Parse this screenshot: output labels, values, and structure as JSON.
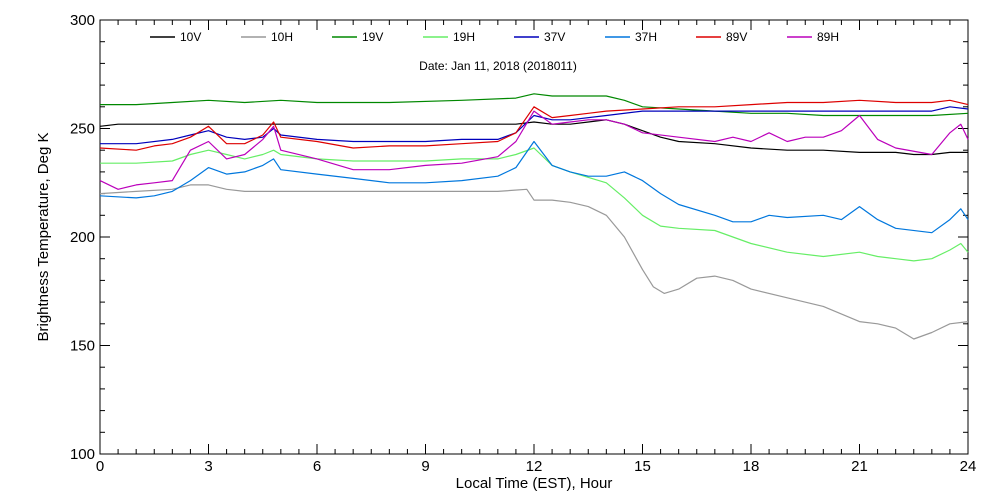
{
  "chart_data": {
    "type": "line",
    "title": "Date: Jan 11, 2018 (2018011)",
    "xlabel": "Local Time (EST), Hour",
    "ylabel": "Brightness Temperature, Deg K",
    "xlim": [
      0,
      24
    ],
    "ylim": [
      100,
      300
    ],
    "x_ticks": [
      0,
      3,
      6,
      9,
      12,
      15,
      18,
      21,
      24
    ],
    "y_ticks": [
      100,
      150,
      200,
      250,
      300
    ],
    "x_minor_step": 0.5,
    "y_minor_step": 10,
    "grid": false,
    "legend_position": "top",
    "series": [
      {
        "name": "10V",
        "color": "#000000",
        "points": [
          [
            0,
            251
          ],
          [
            0.5,
            252
          ],
          [
            1,
            252
          ],
          [
            2,
            252
          ],
          [
            3,
            252
          ],
          [
            4,
            252
          ],
          [
            5,
            252
          ],
          [
            6,
            252
          ],
          [
            8,
            252
          ],
          [
            10,
            252
          ],
          [
            11.5,
            252
          ],
          [
            12,
            253
          ],
          [
            12.5,
            252
          ],
          [
            13,
            252
          ],
          [
            13.5,
            253
          ],
          [
            14,
            254
          ],
          [
            14.5,
            252
          ],
          [
            15,
            249
          ],
          [
            15.5,
            246
          ],
          [
            16,
            244
          ],
          [
            17,
            243
          ],
          [
            18,
            241
          ],
          [
            19,
            240
          ],
          [
            20,
            240
          ],
          [
            21,
            239
          ],
          [
            22,
            239
          ],
          [
            22.5,
            238
          ],
          [
            23,
            238
          ],
          [
            23.5,
            239
          ],
          [
            24,
            239
          ]
        ]
      },
      {
        "name": "10H",
        "color": "#999999",
        "points": [
          [
            0,
            220
          ],
          [
            1,
            221
          ],
          [
            2,
            222
          ],
          [
            2.5,
            224
          ],
          [
            3,
            224
          ],
          [
            3.5,
            222
          ],
          [
            4,
            221
          ],
          [
            5,
            221
          ],
          [
            6,
            221
          ],
          [
            8,
            221
          ],
          [
            10,
            221
          ],
          [
            11,
            221
          ],
          [
            11.8,
            222
          ],
          [
            12,
            217
          ],
          [
            12.5,
            217
          ],
          [
            13,
            216
          ],
          [
            13.5,
            214
          ],
          [
            14,
            210
          ],
          [
            14.5,
            200
          ],
          [
            15,
            185
          ],
          [
            15.3,
            177
          ],
          [
            15.6,
            174
          ],
          [
            16,
            176
          ],
          [
            16.5,
            181
          ],
          [
            17,
            182
          ],
          [
            17.5,
            180
          ],
          [
            18,
            176
          ],
          [
            19,
            172
          ],
          [
            20,
            168
          ],
          [
            21,
            161
          ],
          [
            21.5,
            160
          ],
          [
            22,
            158
          ],
          [
            22.5,
            153
          ],
          [
            23,
            156
          ],
          [
            23.5,
            160
          ],
          [
            24,
            161
          ]
        ]
      },
      {
        "name": "19V",
        "color": "#008800",
        "points": [
          [
            0,
            261
          ],
          [
            1,
            261
          ],
          [
            2,
            262
          ],
          [
            3,
            263
          ],
          [
            4,
            262
          ],
          [
            5,
            263
          ],
          [
            6,
            262
          ],
          [
            8,
            262
          ],
          [
            10,
            263
          ],
          [
            11.5,
            264
          ],
          [
            12,
            266
          ],
          [
            12.5,
            265
          ],
          [
            13,
            265
          ],
          [
            14,
            265
          ],
          [
            14.5,
            263
          ],
          [
            15,
            260
          ],
          [
            16,
            259
          ],
          [
            17,
            258
          ],
          [
            18,
            257
          ],
          [
            19,
            257
          ],
          [
            20,
            256
          ],
          [
            21,
            256
          ],
          [
            22,
            256
          ],
          [
            23,
            256
          ],
          [
            24,
            257
          ]
        ]
      },
      {
        "name": "19H",
        "color": "#66ee66",
        "points": [
          [
            0,
            234
          ],
          [
            1,
            234
          ],
          [
            2,
            235
          ],
          [
            2.5,
            238
          ],
          [
            3,
            240
          ],
          [
            3.5,
            238
          ],
          [
            4,
            236
          ],
          [
            4.5,
            238
          ],
          [
            4.8,
            240
          ],
          [
            5,
            238
          ],
          [
            6,
            236
          ],
          [
            7,
            235
          ],
          [
            8,
            235
          ],
          [
            9,
            235
          ],
          [
            10,
            236
          ],
          [
            11,
            236
          ],
          [
            11.5,
            238
          ],
          [
            12,
            241
          ],
          [
            12.5,
            233
          ],
          [
            13,
            230
          ],
          [
            14,
            225
          ],
          [
            14.5,
            218
          ],
          [
            15,
            210
          ],
          [
            15.5,
            205
          ],
          [
            16,
            204
          ],
          [
            17,
            203
          ],
          [
            17.5,
            200
          ],
          [
            18,
            197
          ],
          [
            19,
            193
          ],
          [
            20,
            191
          ],
          [
            21,
            193
          ],
          [
            21.5,
            191
          ],
          [
            22,
            190
          ],
          [
            22.5,
            189
          ],
          [
            23,
            190
          ],
          [
            23.5,
            194
          ],
          [
            23.8,
            197
          ],
          [
            24,
            193
          ]
        ]
      },
      {
        "name": "37V",
        "color": "#0000bb",
        "points": [
          [
            0,
            243
          ],
          [
            1,
            243
          ],
          [
            2,
            245
          ],
          [
            2.5,
            247
          ],
          [
            3,
            249
          ],
          [
            3.5,
            246
          ],
          [
            4,
            245
          ],
          [
            4.5,
            246
          ],
          [
            4.8,
            250
          ],
          [
            5,
            247
          ],
          [
            6,
            245
          ],
          [
            7,
            244
          ],
          [
            8,
            244
          ],
          [
            9,
            244
          ],
          [
            10,
            245
          ],
          [
            11,
            245
          ],
          [
            11.5,
            248
          ],
          [
            12,
            256
          ],
          [
            12.5,
            254
          ],
          [
            13,
            254
          ],
          [
            14,
            256
          ],
          [
            15,
            258
          ],
          [
            16,
            258
          ],
          [
            17,
            258
          ],
          [
            18,
            258
          ],
          [
            19,
            258
          ],
          [
            20,
            258
          ],
          [
            21,
            258
          ],
          [
            22,
            258
          ],
          [
            23,
            258
          ],
          [
            23.5,
            260
          ],
          [
            24,
            259
          ]
        ]
      },
      {
        "name": "37H",
        "color": "#0077dd",
        "points": [
          [
            0,
            219
          ],
          [
            1,
            218
          ],
          [
            1.5,
            219
          ],
          [
            2,
            221
          ],
          [
            2.5,
            226
          ],
          [
            3,
            232
          ],
          [
            3.5,
            229
          ],
          [
            4,
            230
          ],
          [
            4.5,
            233
          ],
          [
            4.8,
            236
          ],
          [
            5,
            231
          ],
          [
            6,
            229
          ],
          [
            7,
            227
          ],
          [
            8,
            225
          ],
          [
            9,
            225
          ],
          [
            10,
            226
          ],
          [
            11,
            228
          ],
          [
            11.5,
            232
          ],
          [
            12,
            244
          ],
          [
            12.5,
            233
          ],
          [
            13,
            230
          ],
          [
            13.5,
            228
          ],
          [
            14,
            228
          ],
          [
            14.5,
            230
          ],
          [
            15,
            226
          ],
          [
            15.5,
            220
          ],
          [
            16,
            215
          ],
          [
            17,
            210
          ],
          [
            17.5,
            207
          ],
          [
            18,
            207
          ],
          [
            18.5,
            210
          ],
          [
            19,
            209
          ],
          [
            20,
            210
          ],
          [
            20.5,
            208
          ],
          [
            21,
            214
          ],
          [
            21.5,
            208
          ],
          [
            22,
            204
          ],
          [
            23,
            202
          ],
          [
            23.5,
            208
          ],
          [
            23.8,
            213
          ],
          [
            24,
            208
          ]
        ]
      },
      {
        "name": "89V",
        "color": "#dd0000",
        "points": [
          [
            0,
            241
          ],
          [
            1,
            240
          ],
          [
            1.5,
            242
          ],
          [
            2,
            243
          ],
          [
            2.5,
            246
          ],
          [
            3,
            251
          ],
          [
            3.5,
            243
          ],
          [
            4,
            243
          ],
          [
            4.5,
            247
          ],
          [
            4.8,
            253
          ],
          [
            5,
            246
          ],
          [
            6,
            244
          ],
          [
            7,
            241
          ],
          [
            8,
            242
          ],
          [
            9,
            242
          ],
          [
            10,
            243
          ],
          [
            11,
            244
          ],
          [
            11.5,
            248
          ],
          [
            12,
            260
          ],
          [
            12.5,
            255
          ],
          [
            13,
            256
          ],
          [
            13.5,
            257
          ],
          [
            14,
            258
          ],
          [
            15,
            259
          ],
          [
            16,
            260
          ],
          [
            17,
            260
          ],
          [
            18,
            261
          ],
          [
            19,
            262
          ],
          [
            20,
            262
          ],
          [
            21,
            263
          ],
          [
            22,
            262
          ],
          [
            23,
            262
          ],
          [
            23.5,
            263
          ],
          [
            24,
            261
          ]
        ]
      },
      {
        "name": "89H",
        "color": "#bb00bb",
        "points": [
          [
            0,
            226
          ],
          [
            0.5,
            222
          ],
          [
            1,
            224
          ],
          [
            1.5,
            225
          ],
          [
            2,
            226
          ],
          [
            2.5,
            240
          ],
          [
            3,
            244
          ],
          [
            3.5,
            236
          ],
          [
            4,
            238
          ],
          [
            4.5,
            245
          ],
          [
            4.8,
            251
          ],
          [
            5,
            240
          ],
          [
            6,
            236
          ],
          [
            7,
            231
          ],
          [
            8,
            231
          ],
          [
            9,
            233
          ],
          [
            10,
            234
          ],
          [
            11,
            237
          ],
          [
            11.5,
            244
          ],
          [
            12,
            258
          ],
          [
            12.5,
            252
          ],
          [
            13,
            253
          ],
          [
            13.5,
            254
          ],
          [
            14,
            254
          ],
          [
            14.5,
            252
          ],
          [
            15,
            248
          ],
          [
            16,
            246
          ],
          [
            17,
            244
          ],
          [
            17.5,
            246
          ],
          [
            18,
            244
          ],
          [
            18.5,
            248
          ],
          [
            19,
            244
          ],
          [
            19.5,
            246
          ],
          [
            20,
            246
          ],
          [
            20.5,
            249
          ],
          [
            21,
            256
          ],
          [
            21.5,
            245
          ],
          [
            22,
            241
          ],
          [
            23,
            238
          ],
          [
            23.5,
            248
          ],
          [
            23.8,
            252
          ],
          [
            24,
            245
          ]
        ]
      }
    ]
  }
}
